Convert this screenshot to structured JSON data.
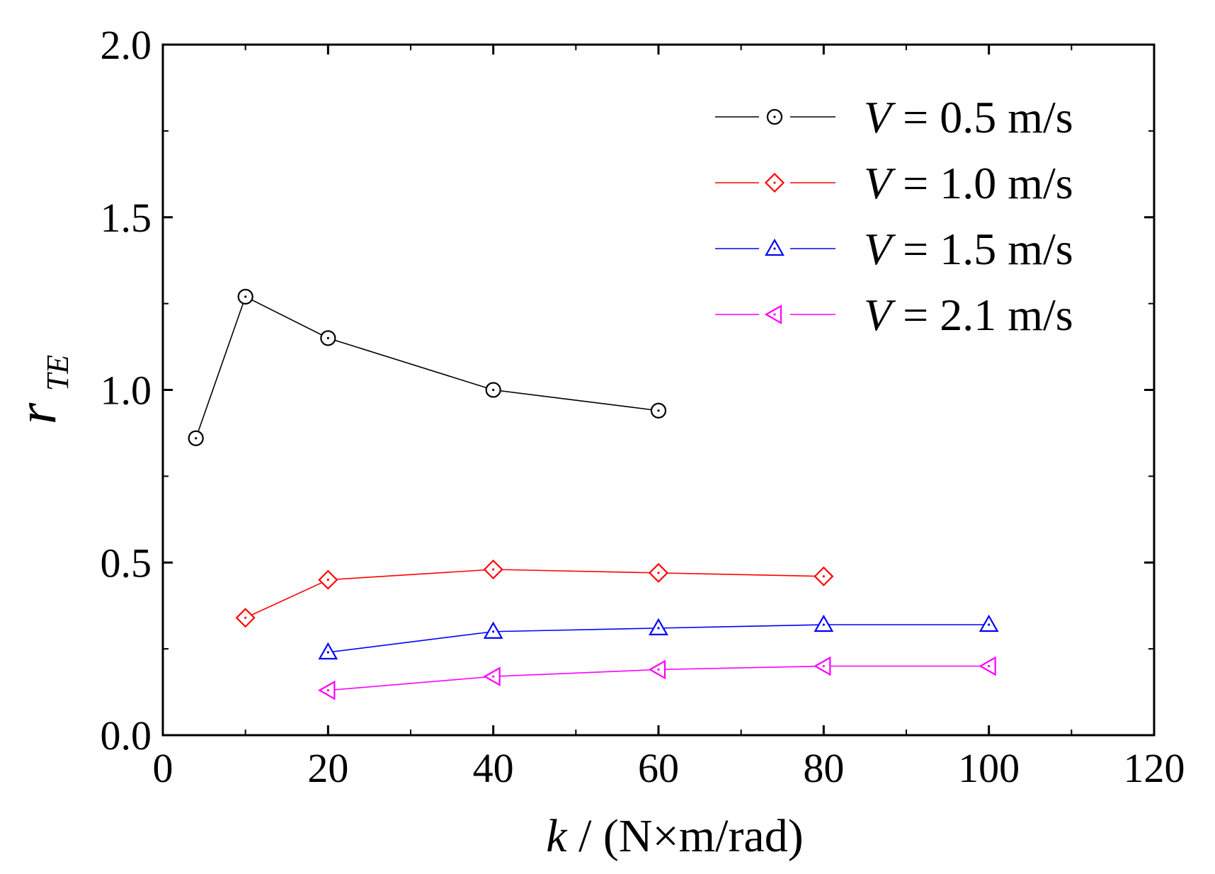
{
  "chart_data": {
    "type": "line",
    "title": "",
    "xlabel": {
      "var": "k",
      "unit": " / (N×m/rad)"
    },
    "ylabel": {
      "var": "r",
      "sub": "TE"
    },
    "xlim": [
      0,
      120
    ],
    "ylim": [
      0,
      2.0
    ],
    "x_major_ticks": [
      0,
      20,
      40,
      60,
      80,
      100,
      120
    ],
    "x_tick_labels": [
      "0",
      "20",
      "40",
      "60",
      "80",
      "100",
      "120"
    ],
    "y_major_ticks": [
      0,
      0.5,
      1.0,
      1.5,
      2.0
    ],
    "y_tick_labels": [
      "0.0",
      "0.5",
      "1.0",
      "1.5",
      "2.0"
    ],
    "grid": false,
    "legend_position": "top-right",
    "series": [
      {
        "name": "V = 0.5 m/s",
        "legend_var": "V",
        "legend_text": " = 0.5 m/s",
        "color": "#000000",
        "marker": "circle",
        "x": [
          4,
          10,
          20,
          40,
          60
        ],
        "y": [
          0.86,
          1.27,
          1.15,
          1.0,
          0.94
        ]
      },
      {
        "name": "V = 1.0 m/s",
        "legend_var": "V",
        "legend_text": " = 1.0 m/s",
        "color": "#ff0000",
        "marker": "diamond",
        "x": [
          10,
          20,
          40,
          60,
          80
        ],
        "y": [
          0.34,
          0.45,
          0.48,
          0.47,
          0.46
        ]
      },
      {
        "name": "V = 1.5 m/s",
        "legend_var": "V",
        "legend_text": " = 1.5 m/s",
        "color": "#0000ff",
        "marker": "triangle-up",
        "x": [
          20,
          40,
          60,
          80,
          100
        ],
        "y": [
          0.24,
          0.3,
          0.31,
          0.32,
          0.32
        ]
      },
      {
        "name": "V = 2.1 m/s",
        "legend_var": "V",
        "legend_text": " = 2.1 m/s",
        "color": "#ff00ff",
        "marker": "triangle-left",
        "x": [
          20,
          40,
          60,
          80,
          100
        ],
        "y": [
          0.13,
          0.17,
          0.19,
          0.2,
          0.2
        ]
      }
    ]
  }
}
